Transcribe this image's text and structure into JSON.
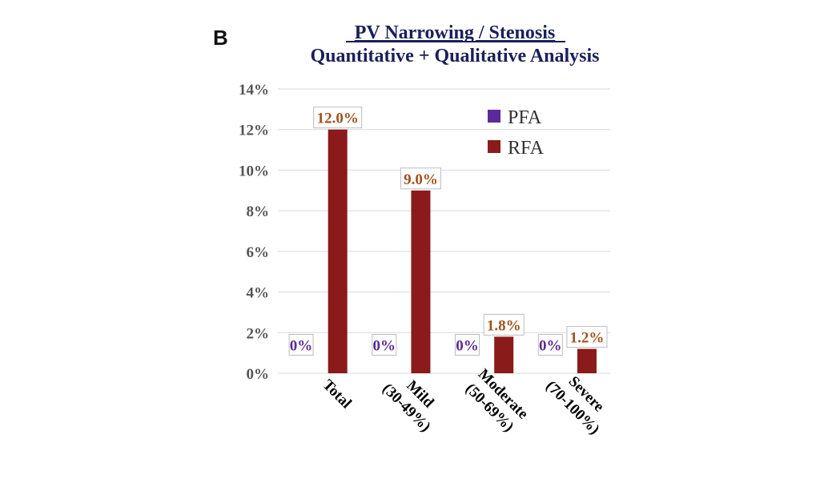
{
  "panel_label": "B",
  "chart_data": {
    "type": "bar",
    "title": "PV Narrowing / Stenosis",
    "subtitle": "Quantitative + Qualitative Analysis",
    "categories": [
      [
        "Total"
      ],
      [
        "Mild",
        "(30-49%)"
      ],
      [
        "Moderate",
        "(50-69%)"
      ],
      [
        "Severe",
        "(70-100%)"
      ]
    ],
    "series": [
      {
        "name": "PFA",
        "values": [
          0,
          0,
          0,
          0
        ],
        "labels": [
          "0%",
          "0%",
          "0%",
          "0%"
        ],
        "color": "#5b2a9a",
        "label_color": "#5b2a9a"
      },
      {
        "name": "RFA",
        "values": [
          12.0,
          9.0,
          1.8,
          1.2
        ],
        "labels": [
          "12.0%",
          "9.0%",
          "1.8%",
          "1.2%"
        ],
        "color": "#8b1a1a",
        "label_color": "#a0521d"
      }
    ],
    "ylim": [
      0,
      14
    ],
    "yticks": [
      0,
      2,
      4,
      6,
      8,
      10,
      12,
      14
    ],
    "ytick_labels": [
      "0%",
      "2%",
      "4%",
      "6%",
      "8%",
      "10%",
      "12%",
      "14%"
    ],
    "xlabel": "",
    "ylabel": "",
    "grid": true,
    "legend_position": "top-right"
  }
}
